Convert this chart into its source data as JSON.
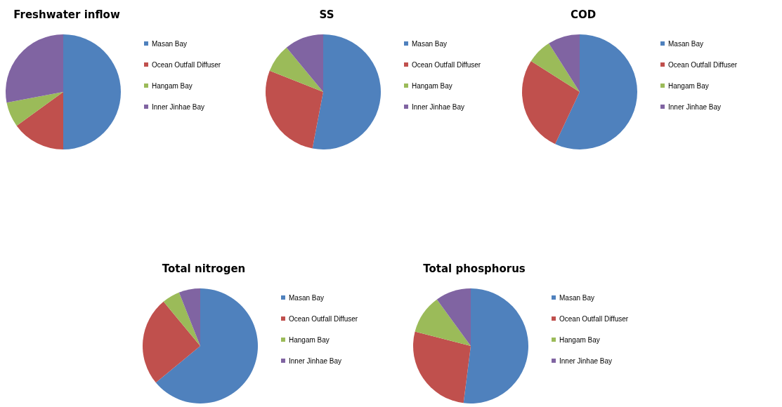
{
  "chart_data": [
    {
      "type": "pie",
      "title": "Freshwater inflow",
      "categories": [
        "Masan Bay",
        "Ocean Outfall Diffuser",
        "Hangam Bay",
        "Inner Jinhae Bay"
      ],
      "values": [
        50,
        15,
        7,
        28
      ],
      "colors": [
        "#4f81bd",
        "#c0504d",
        "#9bbb59",
        "#8064a2"
      ],
      "legend": "right"
    },
    {
      "type": "pie",
      "title": "SS",
      "categories": [
        "Masan Bay",
        "Ocean Outfall Diffuser",
        "Hangam Bay",
        "Inner Jinhae Bay"
      ],
      "values": [
        53,
        28,
        8,
        11
      ],
      "colors": [
        "#4f81bd",
        "#c0504d",
        "#9bbb59",
        "#8064a2"
      ],
      "legend": "right"
    },
    {
      "type": "pie",
      "title": "COD",
      "categories": [
        "Masan Bay",
        "Ocean Outfall Diffuser",
        "Hangam Bay",
        "Inner Jinhae Bay"
      ],
      "values": [
        57,
        27,
        7,
        9
      ],
      "colors": [
        "#4f81bd",
        "#c0504d",
        "#9bbb59",
        "#8064a2"
      ],
      "legend": "right"
    },
    {
      "type": "pie",
      "title": "Total nitrogen",
      "categories": [
        "Masan Bay",
        "Ocean Outfall Diffuser",
        "Hangam Bay",
        "Inner Jinhae Bay"
      ],
      "values": [
        64,
        25,
        5,
        6
      ],
      "colors": [
        "#4f81bd",
        "#c0504d",
        "#9bbb59",
        "#8064a2"
      ],
      "legend": "right"
    },
    {
      "type": "pie",
      "title": "Total phosphorus",
      "categories": [
        "Masan Bay",
        "Ocean Outfall Diffuser",
        "Hangam Bay",
        "Inner Jinhae Bay"
      ],
      "values": [
        52,
        27,
        11,
        10
      ],
      "colors": [
        "#4f81bd",
        "#c0504d",
        "#9bbb59",
        "#8064a2"
      ],
      "legend": "right"
    }
  ]
}
